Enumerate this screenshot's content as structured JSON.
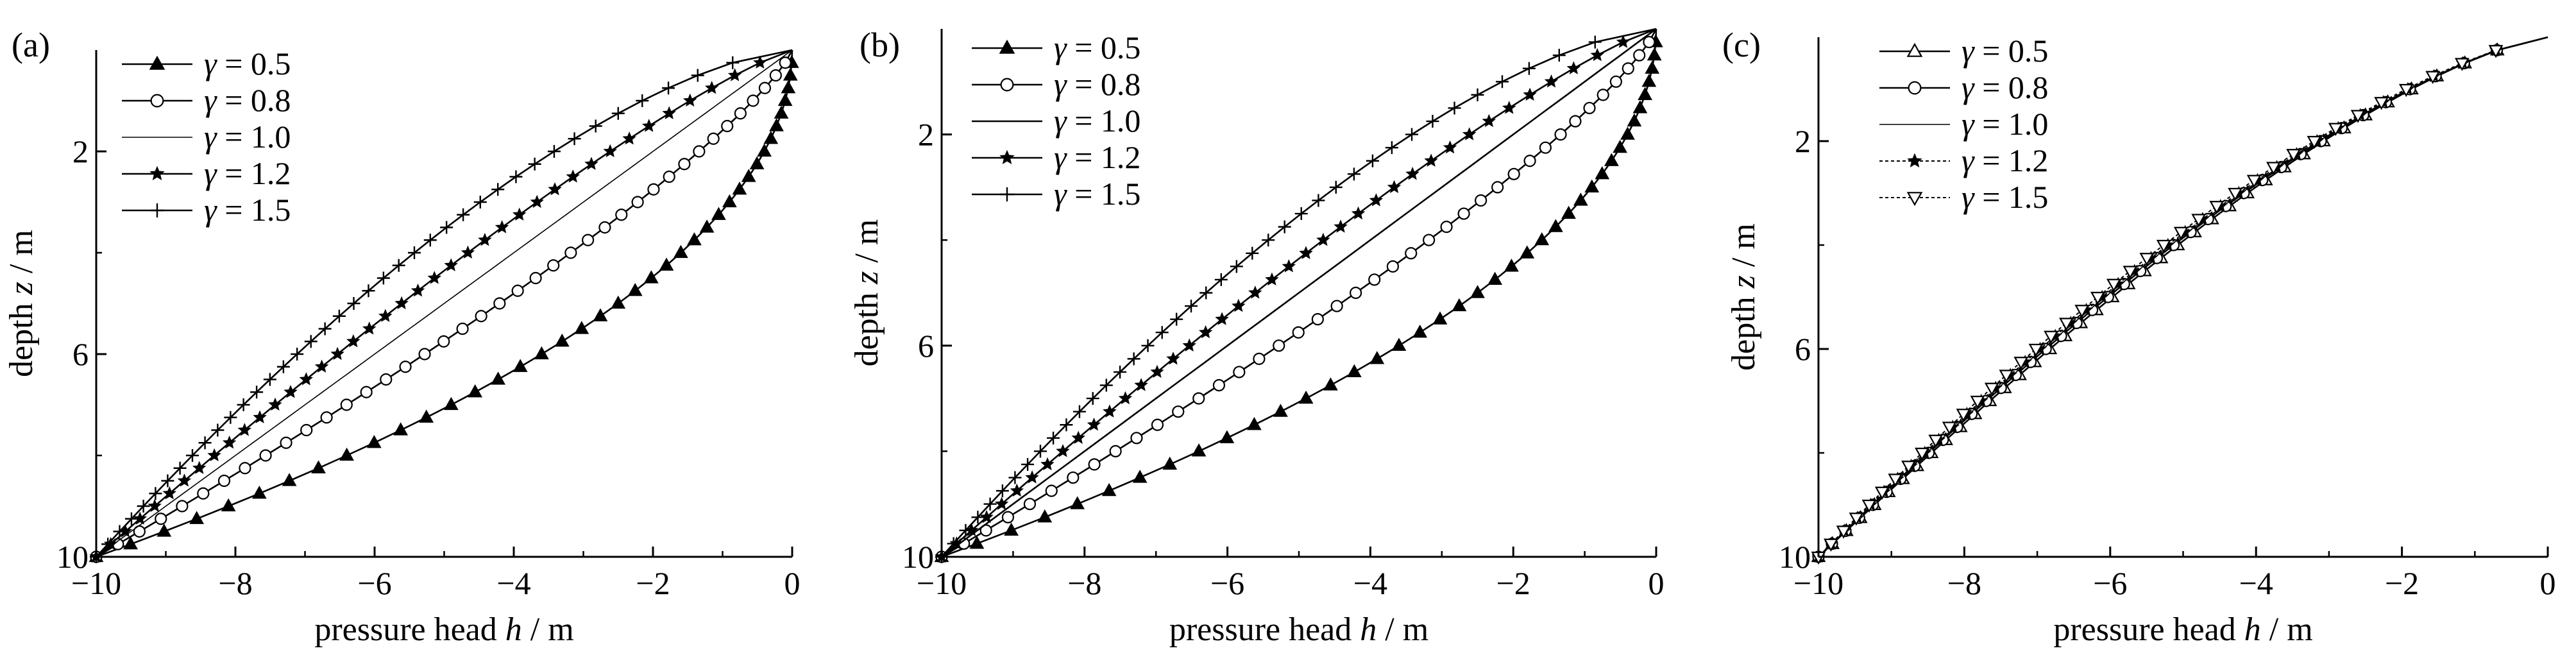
{
  "chart_data": [
    {
      "type": "line",
      "panel_label": "(a)",
      "xlabel": "pressure head h / m",
      "ylabel": "depth z / m",
      "xlim": [
        -10,
        0
      ],
      "ylim": [
        0,
        10
      ],
      "y_inverted": true,
      "xticks": [
        -10,
        -8,
        -6,
        -4,
        -2,
        0
      ],
      "yticks": [
        2,
        6,
        10
      ],
      "grid": false,
      "legend_position": "top-left",
      "series": [
        {
          "name": "γ = 0.5",
          "gamma": 0.5,
          "marker": "triangle-filled",
          "line": "solid"
        },
        {
          "name": "γ = 0.8",
          "gamma": 0.8,
          "marker": "circle-open",
          "line": "solid"
        },
        {
          "name": "γ = 1.0",
          "gamma": 1.0,
          "marker": "none",
          "line": "thin"
        },
        {
          "name": "γ = 1.2",
          "gamma": 1.2,
          "marker": "star",
          "line": "solid"
        },
        {
          "name": "γ = 1.5",
          "gamma": 1.5,
          "marker": "plus",
          "line": "solid"
        }
      ],
      "y_values": [
        0,
        0.25,
        0.5,
        0.75,
        1,
        1.25,
        1.5,
        1.75,
        2,
        2.25,
        2.5,
        2.75,
        3,
        3.25,
        3.5,
        3.75,
        4,
        4.25,
        4.5,
        4.75,
        5,
        5.25,
        5.5,
        5.75,
        6,
        6.25,
        6.5,
        6.75,
        7,
        7.25,
        7.5,
        7.75,
        8,
        8.25,
        8.5,
        8.75,
        9,
        9.25,
        9.5,
        9.75,
        10
      ]
    },
    {
      "type": "line",
      "panel_label": "(b)",
      "xlabel": "pressure head h / m",
      "ylabel": "depth z / m",
      "xlim": [
        -10,
        0
      ],
      "ylim": [
        0,
        10
      ],
      "y_inverted": true,
      "xticks": [
        -10,
        -8,
        -6,
        -4,
        -2,
        0
      ],
      "yticks": [
        2,
        6,
        10
      ],
      "grid": false,
      "legend_position": "top-left",
      "series": [
        {
          "name": "γ = 0.5",
          "gamma": 0.5,
          "marker": "triangle-filled",
          "line": "solid"
        },
        {
          "name": "γ = 0.8",
          "gamma": 0.8,
          "marker": "circle-open",
          "line": "solid"
        },
        {
          "name": "γ = 1.0",
          "gamma": 1.0,
          "marker": "none",
          "line": "solid"
        },
        {
          "name": "γ = 1.2",
          "gamma": 1.2,
          "marker": "star",
          "line": "solid"
        },
        {
          "name": "γ = 1.5",
          "gamma": 1.5,
          "marker": "plus",
          "line": "solid"
        }
      ],
      "y_values": [
        0,
        0.25,
        0.5,
        0.75,
        1,
        1.25,
        1.5,
        1.75,
        2,
        2.25,
        2.5,
        2.75,
        3,
        3.25,
        3.5,
        3.75,
        4,
        4.25,
        4.5,
        4.75,
        5,
        5.25,
        5.5,
        5.75,
        6,
        6.25,
        6.5,
        6.75,
        7,
        7.25,
        7.5,
        7.75,
        8,
        8.25,
        8.5,
        8.75,
        9,
        9.25,
        9.5,
        9.75,
        10
      ]
    },
    {
      "type": "line",
      "panel_label": "(c)",
      "xlabel": "pressure head h / m",
      "ylabel": "depth z / m",
      "xlim": [
        -10,
        0
      ],
      "ylim": [
        0,
        10
      ],
      "y_inverted": true,
      "xticks": [
        -10,
        -8,
        -6,
        -4,
        -2,
        0
      ],
      "yticks": [
        2,
        6,
        10
      ],
      "grid": false,
      "legend_position": "top-left",
      "series": [
        {
          "name": "γ = 0.5",
          "gamma": 0.5,
          "marker": "triangle-open",
          "line": "solid"
        },
        {
          "name": "γ = 0.8",
          "gamma": 0.8,
          "marker": "circle-open",
          "line": "solid"
        },
        {
          "name": "γ = 1.0",
          "gamma": 1.0,
          "marker": "none",
          "line": "thin"
        },
        {
          "name": "γ = 1.2",
          "gamma": 1.2,
          "marker": "star",
          "line": "dotted"
        },
        {
          "name": "γ = 1.5",
          "gamma": 1.5,
          "marker": "triangle-down-open",
          "line": "dotted"
        }
      ],
      "y_values": [
        0,
        0.25,
        0.5,
        0.75,
        1,
        1.25,
        1.5,
        1.75,
        2,
        2.25,
        2.5,
        2.75,
        3,
        3.25,
        3.5,
        3.75,
        4,
        4.25,
        4.5,
        4.75,
        5,
        5.25,
        5.5,
        5.75,
        6,
        6.25,
        6.5,
        6.75,
        7,
        7.25,
        7.5,
        7.75,
        8,
        8.25,
        8.5,
        8.75,
        9,
        9.25,
        9.5,
        9.75,
        10
      ]
    }
  ]
}
